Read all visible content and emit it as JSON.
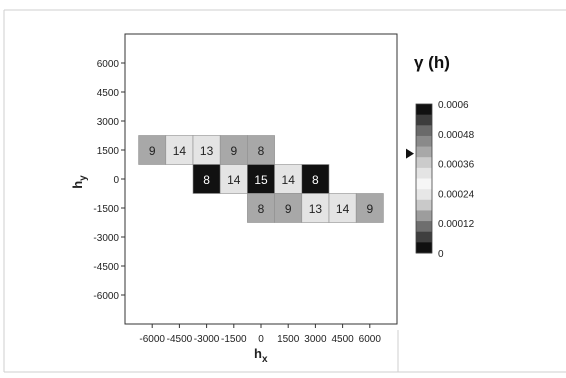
{
  "chart_data": {
    "type": "heatmap",
    "title": "γ (h)",
    "xlabel": "h",
    "xlabel_sub": "x",
    "ylabel": "h",
    "ylabel_sub": "y",
    "xlim": [
      -7500,
      7500
    ],
    "ylim": [
      -7500,
      7500
    ],
    "x_ticks": [
      "-6000",
      "-4500",
      "-3000",
      "-1500",
      "0",
      "1500",
      "3000",
      "4500",
      "6000"
    ],
    "y_ticks": [
      "6000",
      "4500",
      "3000",
      "1500",
      "0",
      "-1500",
      "-3000",
      "-4500",
      "-6000"
    ],
    "x_tick_values": [
      -6000,
      -4500,
      -3000,
      -1500,
      0,
      1500,
      3000,
      4500,
      6000
    ],
    "y_tick_values": [
      6000,
      4500,
      3000,
      1500,
      0,
      -1500,
      -3000,
      -4500,
      -6000
    ],
    "cell_size": 1500,
    "cells": [
      {
        "x": -6000,
        "y": 1500,
        "count": "9",
        "value": 0.00042
      },
      {
        "x": -4500,
        "y": 1500,
        "count": "14",
        "value": 0.0003
      },
      {
        "x": -3000,
        "y": 1500,
        "count": "13",
        "value": 0.00034
      },
      {
        "x": -1500,
        "y": 1500,
        "count": "9",
        "value": 0.00042
      },
      {
        "x": 0,
        "y": 1500,
        "count": "8",
        "value": 0.00042
      },
      {
        "x": -3000,
        "y": 0,
        "count": "8",
        "value": 0.00058
      },
      {
        "x": -1500,
        "y": 0,
        "count": "14",
        "value": 0.0003
      },
      {
        "x": 0,
        "y": 0,
        "count": "15",
        "value": 0.0006
      },
      {
        "x": 1500,
        "y": 0,
        "count": "14",
        "value": 0.00034
      },
      {
        "x": 3000,
        "y": 0,
        "count": "8",
        "value": 0.00058
      },
      {
        "x": 0,
        "y": -1500,
        "count": "8",
        "value": 0.00042
      },
      {
        "x": 1500,
        "y": -1500,
        "count": "9",
        "value": 0.00042
      },
      {
        "x": 3000,
        "y": -1500,
        "count": "13",
        "value": 0.00034
      },
      {
        "x": 4500,
        "y": -1500,
        "count": "14",
        "value": 0.0003
      },
      {
        "x": 6000,
        "y": -1500,
        "count": "9",
        "value": 0.00042
      }
    ],
    "colorbar": {
      "min": 0,
      "max": 0.0006,
      "labels": [
        "0.0006",
        "0.00048",
        "0.00036",
        "0.00024",
        "0.00012",
        "0"
      ],
      "label_values": [
        0.0006,
        0.00048,
        0.00036,
        0.00024,
        0.00012,
        0
      ],
      "marker_value": 0.0004,
      "colors": [
        "#111111",
        "#3d3d3d",
        "#6a6a6a",
        "#8a8a8a",
        "#a8a8a8",
        "#cbcbcb",
        "#e4e4e4",
        "#f6f6f6",
        "#e7e7e7",
        "#c9c9c9",
        "#9d9d9d",
        "#6e6e6e",
        "#3f3f3f",
        "#101010"
      ]
    },
    "grid": false,
    "legend_placement": "right"
  }
}
